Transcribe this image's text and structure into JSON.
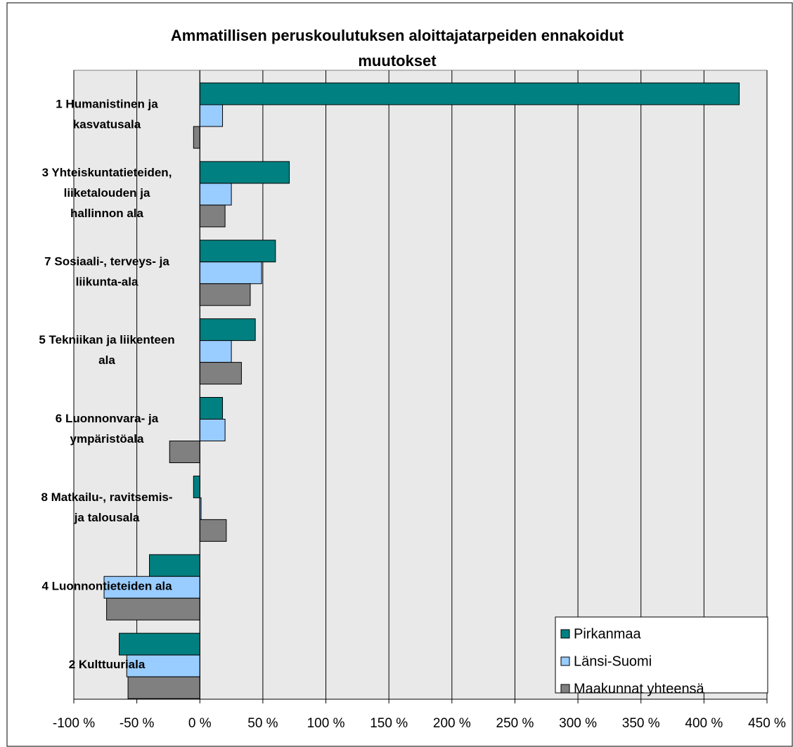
{
  "chart_data": {
    "type": "hbar",
    "title": "Ammatillisen peruskoulutuksen aloittajatarpeiden ennakoidut muutokset",
    "categories": [
      "1 Humanistinen ja kasvatusala",
      "3 Yhteiskuntatieteiden, liiketalouden ja hallinnon ala",
      "7 Sosiaali-, terveys- ja liikunta-ala",
      "5 Tekniikan ja liikenteen ala",
      "6 Luonnonvara- ja ympäristöala",
      "8 Matkailu-, ravitsemis- ja talousala",
      "4 Luonnontieteiden ala",
      "2 Kulttuuriala"
    ],
    "series": [
      {
        "name": "Pirkanmaa",
        "color": "#008080",
        "values": [
          428,
          71,
          60,
          44,
          18,
          -5,
          -40,
          -64
        ]
      },
      {
        "name": "Länsi-Suomi",
        "color": "#99ccff",
        "values": [
          18,
          25,
          49,
          25,
          20,
          1,
          -76,
          -58
        ]
      },
      {
        "name": "Maakunnat yhteensä",
        "color": "#808080",
        "values": [
          -5,
          20,
          40,
          33,
          -24,
          21,
          -74,
          -57
        ]
      }
    ],
    "xlim": [
      -100,
      450
    ],
    "xticks": [
      {
        "value": -100,
        "label": "-100 %"
      },
      {
        "value": -50,
        "label": "-50 %"
      },
      {
        "value": 0,
        "label": "0 %"
      },
      {
        "value": 50,
        "label": "50 %"
      },
      {
        "value": 100,
        "label": "100 %"
      },
      {
        "value": 150,
        "label": "150 %"
      },
      {
        "value": 200,
        "label": "200 %"
      },
      {
        "value": 250,
        "label": "250 %"
      },
      {
        "value": 300,
        "label": "300 %"
      },
      {
        "value": 350,
        "label": "350 %"
      },
      {
        "value": 400,
        "label": "400 %"
      },
      {
        "value": 450,
        "label": "450 %"
      }
    ],
    "grid": true,
    "legend": "lower right"
  }
}
